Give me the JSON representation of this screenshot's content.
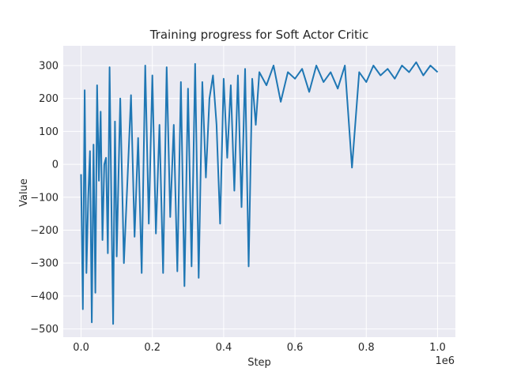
{
  "chart_data": {
    "type": "line",
    "title": "Training progress for Soft Actor Critic",
    "xlabel": "Step",
    "ylabel": "Value",
    "x_offset_label": "1e6",
    "xlim": [
      -50000,
      1050000
    ],
    "ylim": [
      -525,
      360
    ],
    "xticks": [
      0,
      200000,
      400000,
      600000,
      800000,
      1000000
    ],
    "xtick_labels": [
      "0.0",
      "0.2",
      "0.4",
      "0.6",
      "0.8",
      "1.0"
    ],
    "yticks": [
      -500,
      -400,
      -300,
      -200,
      -100,
      0,
      100,
      200,
      300
    ],
    "ytick_labels": [
      "−500",
      "−400",
      "−300",
      "−200",
      "−100",
      "0",
      "100",
      "200",
      "300"
    ],
    "grid": true,
    "colors": {
      "background": "#eaeaf2",
      "grid": "#ffffff",
      "line": "#1f77b4",
      "text": "#262626"
    },
    "series": [
      {
        "x": [
          0,
          5000,
          10000,
          15000,
          20000,
          25000,
          30000,
          35000,
          40000,
          45000,
          50000,
          55000,
          60000,
          65000,
          70000,
          75000,
          80000,
          85000,
          90000,
          95000,
          100000,
          110000,
          120000,
          130000,
          140000,
          150000,
          160000,
          170000,
          180000,
          190000,
          200000,
          210000,
          220000,
          230000,
          240000,
          250000,
          260000,
          270000,
          280000,
          290000,
          300000,
          310000,
          320000,
          330000,
          340000,
          350000,
          360000,
          370000,
          380000,
          390000,
          400000,
          410000,
          420000,
          430000,
          440000,
          450000,
          460000,
          470000,
          480000,
          490000,
          500000,
          520000,
          540000,
          560000,
          580000,
          600000,
          620000,
          640000,
          660000,
          680000,
          700000,
          720000,
          740000,
          760000,
          780000,
          800000,
          820000,
          840000,
          860000,
          880000,
          900000,
          920000,
          940000,
          960000,
          980000,
          1000000
        ],
        "y": [
          -30,
          -440,
          225,
          -330,
          -100,
          40,
          -480,
          60,
          -390,
          240,
          -50,
          160,
          -230,
          0,
          20,
          -270,
          295,
          -120,
          -485,
          130,
          -280,
          200,
          -300,
          -50,
          210,
          -220,
          80,
          -330,
          300,
          -180,
          270,
          -210,
          120,
          -330,
          295,
          -160,
          120,
          -325,
          250,
          -370,
          230,
          -310,
          305,
          -345,
          250,
          -40,
          200,
          270,
          120,
          -180,
          260,
          20,
          240,
          -80,
          270,
          -130,
          290,
          -310,
          260,
          120,
          280,
          240,
          300,
          190,
          280,
          260,
          290,
          220,
          300,
          250,
          280,
          230,
          300,
          -10,
          280,
          250,
          300,
          270,
          290,
          260,
          300,
          280,
          310,
          270,
          300,
          280
        ]
      }
    ]
  }
}
